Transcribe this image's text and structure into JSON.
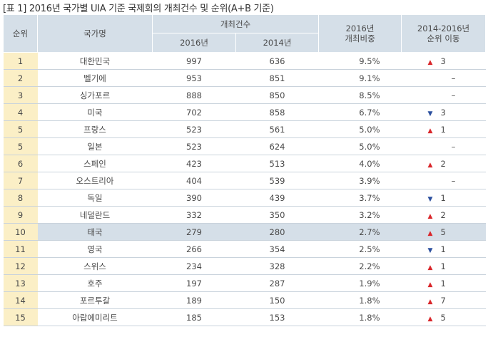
{
  "title": "[표 1] 2016년 국가별 UIA 기준 국제회의 개최건수 및 순위(A+B 기준)",
  "headers": {
    "rank": "순위",
    "country": "국가명",
    "count": "개최건수",
    "y2016": "2016년",
    "y2014": "2014년",
    "share_line1": "2016년",
    "share_line2": "개최비중",
    "move_line1": "2014-2016년",
    "move_line2": "순위 이동"
  },
  "rows": [
    {
      "rank": "1",
      "country": "대한민국",
      "c2016": "997",
      "c2014": "636",
      "share": "9.5%",
      "dir": "up",
      "arrow": "▲",
      "move": "3"
    },
    {
      "rank": "2",
      "country": "벨기에",
      "c2016": "953",
      "c2014": "851",
      "share": "9.1%",
      "dir": "none",
      "arrow": "",
      "move": "–"
    },
    {
      "rank": "3",
      "country": "싱가포르",
      "c2016": "888",
      "c2014": "850",
      "share": "8.5%",
      "dir": "none",
      "arrow": "",
      "move": "–"
    },
    {
      "rank": "4",
      "country": "미국",
      "c2016": "702",
      "c2014": "858",
      "share": "6.7%",
      "dir": "down",
      "arrow": "▼",
      "move": "3"
    },
    {
      "rank": "5",
      "country": "프랑스",
      "c2016": "523",
      "c2014": "561",
      "share": "5.0%",
      "dir": "up",
      "arrow": "▲",
      "move": "1"
    },
    {
      "rank": "5",
      "country": "일본",
      "c2016": "523",
      "c2014": "624",
      "share": "5.0%",
      "dir": "none",
      "arrow": "",
      "move": "–"
    },
    {
      "rank": "6",
      "country": "스페인",
      "c2016": "423",
      "c2014": "513",
      "share": "4.0%",
      "dir": "up",
      "arrow": "▲",
      "move": "2"
    },
    {
      "rank": "7",
      "country": "오스트리아",
      "c2016": "404",
      "c2014": "539",
      "share": "3.9%",
      "dir": "none",
      "arrow": "",
      "move": "–"
    },
    {
      "rank": "8",
      "country": "독일",
      "c2016": "390",
      "c2014": "439",
      "share": "3.7%",
      "dir": "down",
      "arrow": "▼",
      "move": "1"
    },
    {
      "rank": "9",
      "country": "네덜란드",
      "c2016": "332",
      "c2014": "350",
      "share": "3.2%",
      "dir": "up",
      "arrow": "▲",
      "move": "2"
    },
    {
      "rank": "10",
      "country": "태국",
      "c2016": "279",
      "c2014": "280",
      "share": "2.7%",
      "dir": "up",
      "arrow": "▲",
      "move": "5",
      "highlight": true
    },
    {
      "rank": "11",
      "country": "영국",
      "c2016": "266",
      "c2014": "354",
      "share": "2.5%",
      "dir": "down",
      "arrow": "▼",
      "move": "1"
    },
    {
      "rank": "12",
      "country": "스위스",
      "c2016": "234",
      "c2014": "328",
      "share": "2.2%",
      "dir": "up",
      "arrow": "▲",
      "move": "1"
    },
    {
      "rank": "13",
      "country": "호주",
      "c2016": "197",
      "c2014": "287",
      "share": "1.9%",
      "dir": "up",
      "arrow": "▲",
      "move": "1"
    },
    {
      "rank": "14",
      "country": "포르투갈",
      "c2016": "189",
      "c2014": "150",
      "share": "1.8%",
      "dir": "up",
      "arrow": "▲",
      "move": "7"
    },
    {
      "rank": "15",
      "country": "아랍에미리트",
      "c2016": "185",
      "c2014": "153",
      "share": "1.8%",
      "dir": "up",
      "arrow": "▲",
      "move": "5"
    }
  ],
  "colors": {
    "up": "#d9262a",
    "down": "#2b4f9e",
    "header_bg": "#d5dfe8",
    "rank_bg": "#fbefc6"
  }
}
